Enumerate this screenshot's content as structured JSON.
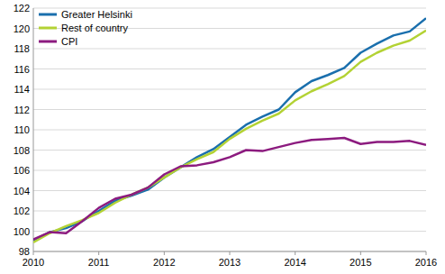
{
  "chart_data": {
    "type": "line",
    "x": [
      2010,
      2010.25,
      2010.5,
      2010.75,
      2011,
      2011.25,
      2011.5,
      2011.75,
      2012,
      2012.25,
      2012.5,
      2012.75,
      2013,
      2013.25,
      2013.5,
      2013.75,
      2014,
      2014.25,
      2014.5,
      2014.75,
      2015,
      2015.25,
      2015.5,
      2015.75,
      2016
    ],
    "series": [
      {
        "name": "Greater Helsinki",
        "color": "#1a6fad",
        "values": [
          99.1,
          99.9,
          100.3,
          101.0,
          102.0,
          103.0,
          103.5,
          104.1,
          105.3,
          106.3,
          107.3,
          108.1,
          109.3,
          110.5,
          111.3,
          112.0,
          113.7,
          114.8,
          115.4,
          116.1,
          117.6,
          118.5,
          119.3,
          119.7,
          121.0
        ]
      },
      {
        "name": "Rest of country",
        "color": "#b3d234",
        "values": [
          98.9,
          99.8,
          100.5,
          101.1,
          101.8,
          102.8,
          103.6,
          104.3,
          105.3,
          106.3,
          107.1,
          107.8,
          109.1,
          110.1,
          110.9,
          111.6,
          112.9,
          113.8,
          114.5,
          115.3,
          116.7,
          117.6,
          118.3,
          118.8,
          119.8
        ]
      },
      {
        "name": "CPI",
        "color": "#8c1b7f",
        "values": [
          99.2,
          99.9,
          99.8,
          101.0,
          102.3,
          103.2,
          103.6,
          104.3,
          105.6,
          106.4,
          106.5,
          106.8,
          107.3,
          108.0,
          107.9,
          108.3,
          108.7,
          109.0,
          109.1,
          109.2,
          108.6,
          108.8,
          108.8,
          108.9,
          108.5
        ]
      }
    ],
    "xlim": [
      2010,
      2016
    ],
    "xticks": [
      2010,
      2011,
      2012,
      2013,
      2014,
      2015,
      2016
    ],
    "ylim": [
      98,
      122
    ],
    "yticks": [
      98,
      100,
      102,
      104,
      106,
      108,
      110,
      112,
      114,
      116,
      118,
      120,
      122
    ],
    "grid": true,
    "legend": "top-left"
  }
}
